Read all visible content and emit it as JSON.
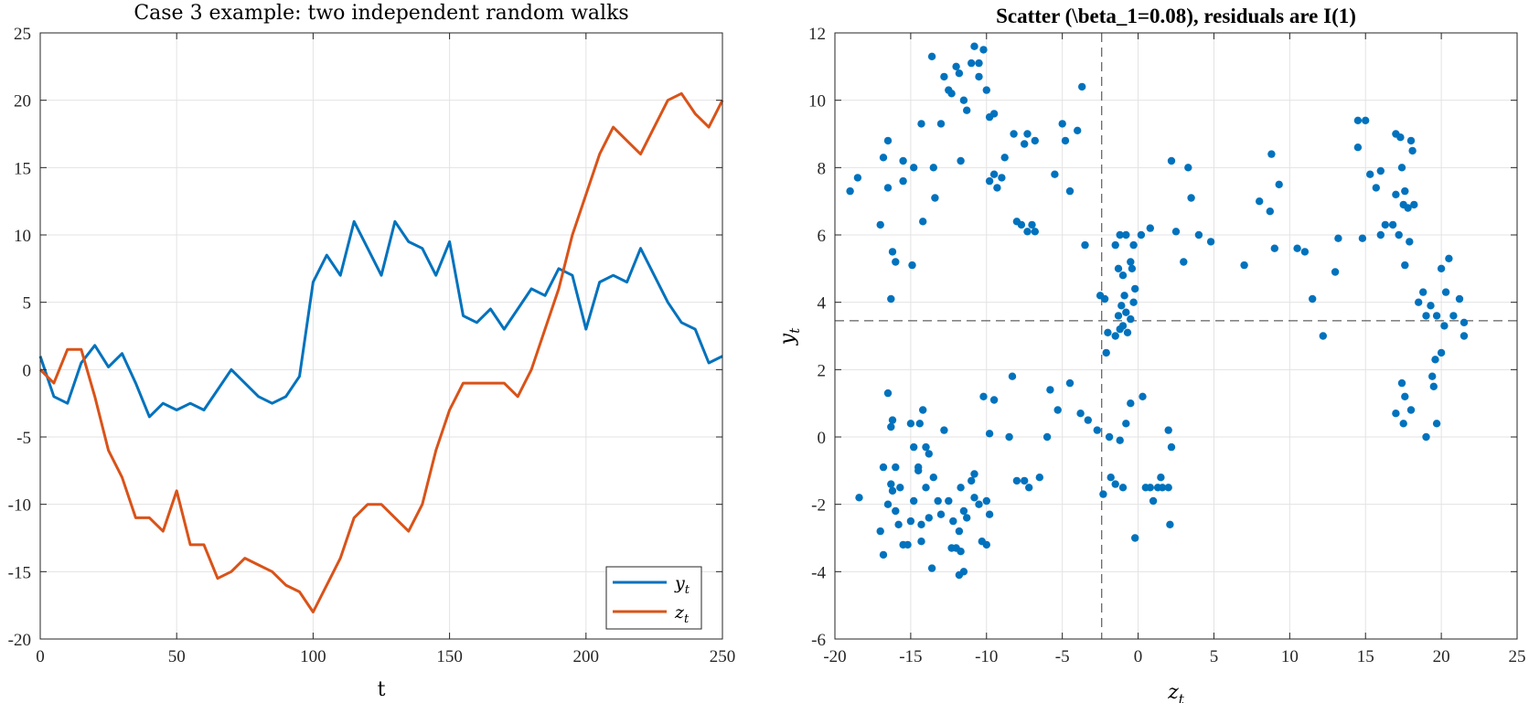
{
  "chart_data": [
    {
      "type": "line",
      "title": "Case 3 example: two independent random walks",
      "xlabel": "t",
      "ylabel": "",
      "xlim": [
        0,
        250
      ],
      "ylim": [
        -20,
        25
      ],
      "xticks": [
        0,
        50,
        100,
        150,
        200,
        250
      ],
      "yticks": [
        -20,
        -15,
        -10,
        -5,
        0,
        5,
        10,
        15,
        20,
        25
      ],
      "grid": true,
      "legend": "bottom-right",
      "series": [
        {
          "name": "y",
          "name_sub": "t",
          "color": "#0072BD",
          "x": [
            0,
            5,
            10,
            15,
            20,
            25,
            30,
            35,
            40,
            45,
            50,
            55,
            60,
            65,
            70,
            75,
            80,
            85,
            90,
            95,
            100,
            105,
            110,
            115,
            120,
            125,
            130,
            135,
            140,
            145,
            150,
            155,
            160,
            165,
            170,
            175,
            180,
            185,
            190,
            195,
            200,
            205,
            210,
            215,
            220,
            225,
            230,
            235,
            240,
            245,
            250
          ],
          "values": [
            1,
            -2,
            -2.5,
            0.5,
            1.8,
            0.2,
            1.2,
            -1,
            -3.5,
            -2.5,
            -3,
            -2.5,
            -3,
            -1.5,
            0,
            -1,
            -2,
            -2.5,
            -2,
            -0.5,
            6.5,
            8.5,
            7,
            11,
            9,
            7,
            11,
            9.5,
            9,
            7,
            9.5,
            4,
            3.5,
            4.5,
            3,
            4.5,
            6,
            5.5,
            7.5,
            7,
            3,
            6.5,
            7,
            6.5,
            9,
            7,
            5,
            3.5,
            3,
            0.5,
            1
          ]
        },
        {
          "name": "z",
          "name_sub": "t",
          "color": "#D95319",
          "x": [
            0,
            5,
            10,
            15,
            20,
            25,
            30,
            35,
            40,
            45,
            50,
            55,
            60,
            65,
            70,
            75,
            80,
            85,
            90,
            95,
            100,
            105,
            110,
            115,
            120,
            125,
            130,
            135,
            140,
            145,
            150,
            155,
            160,
            165,
            170,
            175,
            180,
            185,
            190,
            195,
            200,
            205,
            210,
            215,
            220,
            225,
            230,
            235,
            240,
            245,
            250
          ],
          "values": [
            0,
            -1,
            1.5,
            1.5,
            -2,
            -6,
            -8,
            -11,
            -11,
            -12,
            -9,
            -13,
            -13,
            -15.5,
            -15,
            -14,
            -14.5,
            -15,
            -16,
            -16.5,
            -18,
            -16,
            -14,
            -11,
            -10,
            -10,
            -11,
            -12,
            -10,
            -6,
            -3,
            -1,
            -1,
            -1,
            -1,
            -2,
            0,
            3,
            6,
            10,
            13,
            16,
            18,
            17,
            16,
            18,
            20,
            20.5,
            19,
            18,
            20
          ]
        }
      ]
    },
    {
      "type": "scatter",
      "title": "Scatter (\\beta_1=0.08), residuals are I(1)",
      "xlabel": "z",
      "xlabel_sub": "t",
      "ylabel": "y",
      "ylabel_sub": "t",
      "xlim": [
        -20,
        25
      ],
      "ylim": [
        -6,
        12
      ],
      "xticks": [
        -20,
        -15,
        -10,
        -5,
        0,
        5,
        10,
        15,
        20,
        25
      ],
      "yticks": [
        -6,
        -4,
        -2,
        0,
        2,
        4,
        6,
        8,
        10,
        12
      ],
      "grid": true,
      "mean_lines": {
        "x": -2.4,
        "y": 3.45
      },
      "color": "#0072BD",
      "points": [
        [
          -19,
          7.3
        ],
        [
          -18.5,
          7.7
        ],
        [
          -16.8,
          8.3
        ],
        [
          -16.5,
          8.8
        ],
        [
          -16.5,
          7.4
        ],
        [
          -17,
          6.3
        ],
        [
          -16.2,
          5.5
        ],
        [
          -16,
          5.2
        ],
        [
          -16.3,
          4.1
        ],
        [
          -15.5,
          7.6
        ],
        [
          -15.5,
          8.2
        ],
        [
          -14.8,
          8.0
        ],
        [
          -14.3,
          9.3
        ],
        [
          -14.2,
          6.4
        ],
        [
          -14.9,
          5.1
        ],
        [
          -13.5,
          8.0
        ],
        [
          -13.4,
          7.1
        ],
        [
          -13,
          9.3
        ],
        [
          -12.8,
          10.7
        ],
        [
          -12.5,
          10.3
        ],
        [
          -12.3,
          10.2
        ],
        [
          -12,
          11.0
        ],
        [
          -11.8,
          10.8
        ],
        [
          -11.5,
          10.0
        ],
        [
          -11.3,
          9.7
        ],
        [
          -11,
          11.1
        ],
        [
          -10.8,
          11.6
        ],
        [
          -10.5,
          10.7
        ],
        [
          -10.2,
          11.5
        ],
        [
          -10.5,
          11.1
        ],
        [
          -13.6,
          11.3
        ],
        [
          -10,
          10.3
        ],
        [
          -9.8,
          9.5
        ],
        [
          -9.5,
          9.6
        ],
        [
          -9.8,
          7.6
        ],
        [
          -9.5,
          7.8
        ],
        [
          -9.3,
          7.4
        ],
        [
          -9,
          7.7
        ],
        [
          -8.8,
          8.3
        ],
        [
          -8.2,
          9.0
        ],
        [
          -7.5,
          8.7
        ],
        [
          -7.3,
          9.0
        ],
        [
          -6.8,
          8.8
        ],
        [
          -8,
          6.4
        ],
        [
          -7.7,
          6.3
        ],
        [
          -7.3,
          6.1
        ],
        [
          -7,
          6.3
        ],
        [
          -6.8,
          6.1
        ],
        [
          -11.7,
          8.2
        ],
        [
          -5,
          9.3
        ],
        [
          -5.5,
          7.8
        ],
        [
          -4.8,
          8.8
        ],
        [
          -4.5,
          7.3
        ],
        [
          -4.0,
          9.1
        ],
        [
          -3.7,
          10.4
        ],
        [
          -3.5,
          5.7
        ],
        [
          -1.5,
          5.7
        ],
        [
          -1.2,
          6.0
        ],
        [
          -0.8,
          6.0
        ],
        [
          -0.5,
          5.2
        ],
        [
          -0.3,
          5.7
        ],
        [
          0.2,
          6.0
        ],
        [
          0.8,
          6.2
        ],
        [
          -1.3,
          5.0
        ],
        [
          -1.0,
          4.8
        ],
        [
          -0.9,
          4.2
        ],
        [
          -1.1,
          3.9
        ],
        [
          -1.3,
          3.6
        ],
        [
          -1.0,
          3.3
        ],
        [
          -0.7,
          3.1
        ],
        [
          -0.5,
          3.5
        ],
        [
          -0.3,
          4.0
        ],
        [
          -0.2,
          4.4
        ],
        [
          -0.8,
          3.7
        ],
        [
          -1.2,
          3.2
        ],
        [
          -1.5,
          3.0
        ],
        [
          -2.0,
          3.1
        ],
        [
          -2.2,
          4.1
        ],
        [
          -2.5,
          4.2
        ],
        [
          -2.1,
          2.5
        ],
        [
          -0.4,
          5.0
        ],
        [
          2.2,
          8.2
        ],
        [
          2.5,
          6.1
        ],
        [
          3.0,
          5.2
        ],
        [
          3.3,
          8.0
        ],
        [
          3.5,
          7.1
        ],
        [
          4.0,
          6.0
        ],
        [
          4.8,
          5.8
        ],
        [
          7.0,
          5.1
        ],
        [
          8.0,
          7.0
        ],
        [
          8.8,
          8.4
        ],
        [
          8.7,
          6.7
        ],
        [
          9.0,
          5.6
        ],
        [
          9.3,
          7.5
        ],
        [
          10.5,
          5.6
        ],
        [
          11,
          5.5
        ],
        [
          11.5,
          4.1
        ],
        [
          12.2,
          3.0
        ],
        [
          13,
          4.9
        ],
        [
          13.2,
          5.9
        ],
        [
          14.5,
          9.4
        ],
        [
          15,
          9.4
        ],
        [
          14.5,
          8.6
        ],
        [
          15.3,
          7.8
        ],
        [
          15.7,
          7.4
        ],
        [
          16.0,
          7.9
        ],
        [
          14.8,
          5.9
        ],
        [
          16.0,
          6.0
        ],
        [
          16.3,
          6.3
        ],
        [
          16.8,
          6.3
        ],
        [
          17,
          7.2
        ],
        [
          17.2,
          6.0
        ],
        [
          17.5,
          6.9
        ],
        [
          17.8,
          6.8
        ],
        [
          17.6,
          7.3
        ],
        [
          18,
          8.8
        ],
        [
          18.1,
          8.5
        ],
        [
          17.9,
          5.8
        ],
        [
          17.4,
          8.0
        ],
        [
          18.2,
          6.9
        ],
        [
          17.0,
          9.0
        ],
        [
          17.3,
          8.9
        ],
        [
          17.6,
          5.1
        ],
        [
          18.5,
          4.0
        ],
        [
          18.8,
          4.3
        ],
        [
          19.0,
          3.6
        ],
        [
          19.3,
          3.9
        ],
        [
          19.7,
          3.6
        ],
        [
          20.0,
          5.0
        ],
        [
          20.3,
          4.3
        ],
        [
          20.5,
          5.3
        ],
        [
          20.8,
          3.6
        ],
        [
          21.2,
          4.1
        ],
        [
          21.5,
          3.0
        ],
        [
          21.5,
          3.4
        ],
        [
          19.6,
          2.3
        ],
        [
          20.0,
          2.5
        ],
        [
          19.4,
          1.8
        ],
        [
          17.4,
          1.6
        ],
        [
          17.6,
          1.2
        ],
        [
          17.0,
          0.7
        ],
        [
          17.5,
          0.4
        ],
        [
          18.0,
          0.8
        ],
        [
          19.0,
          0.0
        ],
        [
          19.7,
          0.4
        ],
        [
          20.2,
          3.3
        ],
        [
          19.5,
          1.5
        ],
        [
          -18.4,
          -1.8
        ],
        [
          -17,
          -2.8
        ],
        [
          -16.8,
          -3.5
        ],
        [
          -16.8,
          -0.9
        ],
        [
          -16.5,
          -2.0
        ],
        [
          -16.3,
          -1.4
        ],
        [
          -16.2,
          -1.6
        ],
        [
          -16.0,
          -0.9
        ],
        [
          -15.8,
          -2.6
        ],
        [
          -15.5,
          -3.2
        ],
        [
          -16.5,
          1.3
        ],
        [
          -16.2,
          0.5
        ],
        [
          -16.3,
          0.3
        ],
        [
          -16.0,
          -2.2
        ],
        [
          -15.7,
          -1.5
        ],
        [
          -15.0,
          0.4
        ],
        [
          -14.8,
          -0.3
        ],
        [
          -14.5,
          -0.9
        ],
        [
          -14.2,
          0.8
        ],
        [
          -14.0,
          -1.5
        ],
        [
          -14.5,
          -1.0
        ],
        [
          -14.8,
          -1.9
        ],
        [
          -14.3,
          -2.6
        ],
        [
          -15.0,
          -2.5
        ],
        [
          -15.2,
          -3.2
        ],
        [
          -14.3,
          -3.1
        ],
        [
          -13.8,
          -0.5
        ],
        [
          -13.5,
          -1.2
        ],
        [
          -13.2,
          -1.9
        ],
        [
          -13.0,
          -2.3
        ],
        [
          -13.8,
          -2.4
        ],
        [
          -13.6,
          -3.9
        ],
        [
          -14.4,
          0.4
        ],
        [
          -14.0,
          -0.3
        ],
        [
          -12.8,
          0.2
        ],
        [
          -12.5,
          -1.9
        ],
        [
          -12.2,
          -2.5
        ],
        [
          -12.0,
          -3.3
        ],
        [
          -11.8,
          -2.8
        ],
        [
          -11.5,
          -2.2
        ],
        [
          -11.3,
          -2.4
        ],
        [
          -11.7,
          -3.4
        ],
        [
          -11.5,
          -4.0
        ],
        [
          -11.8,
          -4.1
        ],
        [
          -12.3,
          -3.3
        ],
        [
          -11.0,
          -1.3
        ],
        [
          -10.8,
          -1.1
        ],
        [
          -10.5,
          -2.0
        ],
        [
          -10.2,
          1.2
        ],
        [
          -10.0,
          -1.9
        ],
        [
          -9.8,
          -2.3
        ],
        [
          -10.3,
          -3.1
        ],
        [
          -10.0,
          -3.2
        ],
        [
          -9.5,
          1.1
        ],
        [
          -9.8,
          0.1
        ],
        [
          -10.8,
          -1.8
        ],
        [
          -11.7,
          -1.5
        ],
        [
          -8.3,
          1.8
        ],
        [
          -8.5,
          0.0
        ],
        [
          -8.0,
          -1.3
        ],
        [
          -7.5,
          -1.3
        ],
        [
          -7.2,
          -1.5
        ],
        [
          -6.5,
          -1.2
        ],
        [
          -6.0,
          0.0
        ],
        [
          -5.8,
          1.4
        ],
        [
          -5.3,
          0.8
        ],
        [
          -4.5,
          1.6
        ],
        [
          -3.8,
          0.7
        ],
        [
          -3.3,
          0.5
        ],
        [
          -2.7,
          0.2
        ],
        [
          -2.3,
          -1.7
        ],
        [
          -1.8,
          -1.2
        ],
        [
          -1.5,
          -1.4
        ],
        [
          -1.2,
          -0.1
        ],
        [
          -1.0,
          -1.5
        ],
        [
          -0.8,
          0.4
        ],
        [
          -0.5,
          1.0
        ],
        [
          -0.2,
          -3.0
        ],
        [
          0.3,
          1.2
        ],
        [
          0.5,
          -1.5
        ],
        [
          0.8,
          -1.5
        ],
        [
          1.0,
          -1.9
        ],
        [
          1.3,
          -1.5
        ],
        [
          1.6,
          -1.5
        ],
        [
          2.0,
          -1.5
        ],
        [
          2.0,
          0.2
        ],
        [
          2.2,
          -0.3
        ],
        [
          2.1,
          -2.6
        ],
        [
          1.5,
          -1.2
        ],
        [
          -1.9,
          0.0
        ]
      ]
    }
  ]
}
